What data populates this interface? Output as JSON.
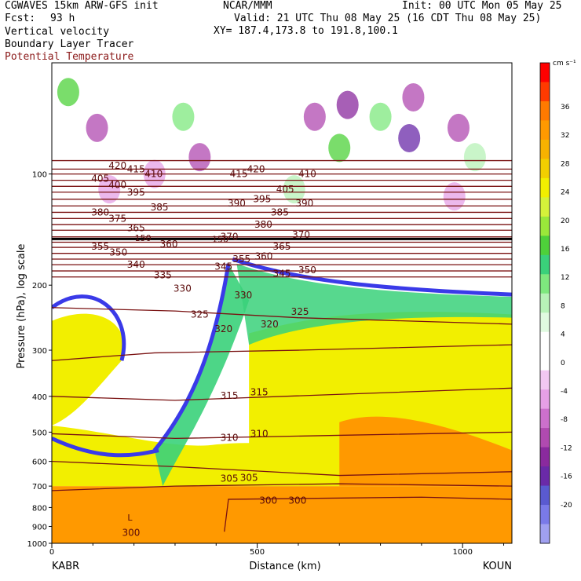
{
  "header": {
    "model": "CGWAVES 15km ARW-GFS init",
    "forecast_label": "Fcst:",
    "forecast_hours": "93 h",
    "org": "NCAR/MMM",
    "init": "Init: 00 UTC Mon 05 May 25",
    "valid": "Valid: 21 UTC Thu 08 May 25 (16 CDT Thu 08 May 25)",
    "xy": "XY= 187.4,173.8 to 191.8,100.1",
    "field1": "Vertical velocity",
    "field2": "Boundary Layer Tracer",
    "field3": "Potential Temperature",
    "field3_color": "#8b1a1a"
  },
  "chart_data": {
    "type": "heatmap",
    "xlabel": "Distance (km)",
    "ylabel": "Pressure (hPa), log scale",
    "x_ticks": [
      0,
      500,
      1000
    ],
    "y_ticks": [
      100,
      200,
      300,
      400,
      500,
      600,
      700,
      800,
      900,
      1000
    ],
    "xlim": [
      0,
      1120
    ],
    "ylim": [
      1000,
      50
    ],
    "x_start_label": "KABR",
    "x_end_label": "KOUN",
    "colorbar": {
      "unit": "cm s⁻¹",
      "ticks": [
        36,
        32,
        28,
        24,
        20,
        16,
        12,
        8,
        4,
        0,
        -4,
        -8,
        -12,
        -16,
        -20
      ],
      "colors": [
        "#ff0000",
        "#ff3a00",
        "#ff7a00",
        "#ff9900",
        "#f7b200",
        "#f2cf00",
        "#f2ef00",
        "#d5f23a",
        "#9ae83a",
        "#4ed13a",
        "#3ad17a",
        "#7ee87e",
        "#b7f2b7",
        "#e0fae0",
        "#ffffff",
        "#ffffff",
        "#f2c8f2",
        "#e6a0e6",
        "#cc70cc",
        "#b04ab0",
        "#8a2a9e",
        "#6a2aa8",
        "#5a5ad0",
        "#7a7ae8",
        "#a0a0f0"
      ]
    },
    "theta_labels": [
      {
        "v": "420",
        "x": 160,
        "p": 95
      },
      {
        "v": "415",
        "x": 205,
        "p": 97
      },
      {
        "v": "410",
        "x": 248,
        "p": 100
      },
      {
        "v": "405",
        "x": 118,
        "p": 103
      },
      {
        "v": "400",
        "x": 160,
        "p": 107
      },
      {
        "v": "395",
        "x": 205,
        "p": 112
      },
      {
        "v": "385",
        "x": 262,
        "p": 123
      },
      {
        "v": "380",
        "x": 118,
        "p": 127
      },
      {
        "v": "375",
        "x": 160,
        "p": 132
      },
      {
        "v": "365",
        "x": 205,
        "p": 140
      },
      {
        "v": "360",
        "x": 285,
        "p": 155
      },
      {
        "v": "355",
        "x": 118,
        "p": 157
      },
      {
        "v": "350",
        "x": 162,
        "p": 163
      },
      {
        "v": "340",
        "x": 205,
        "p": 176
      },
      {
        "v": "335",
        "x": 270,
        "p": 188
      },
      {
        "v": "330",
        "x": 318,
        "p": 204
      },
      {
        "v": "325",
        "x": 360,
        "p": 240
      },
      {
        "v": "320",
        "x": 418,
        "p": 263
      },
      {
        "v": "415",
        "x": 455,
        "p": 100
      },
      {
        "v": "420",
        "x": 497,
        "p": 97
      },
      {
        "v": "410",
        "x": 622,
        "p": 100
      },
      {
        "v": "405",
        "x": 568,
        "p": 110
      },
      {
        "v": "395",
        "x": 512,
        "p": 117
      },
      {
        "v": "390",
        "x": 450,
        "p": 120
      },
      {
        "v": "390",
        "x": 615,
        "p": 120
      },
      {
        "v": "385",
        "x": 555,
        "p": 127
      },
      {
        "v": "380",
        "x": 515,
        "p": 137
      },
      {
        "v": "370",
        "x": 432,
        "p": 148
      },
      {
        "v": "370",
        "x": 607,
        "p": 146
      },
      {
        "v": "365",
        "x": 560,
        "p": 157
      },
      {
        "v": "360",
        "x": 516,
        "p": 167
      },
      {
        "v": "355",
        "x": 462,
        "p": 170
      },
      {
        "v": "350",
        "x": 622,
        "p": 182
      },
      {
        "v": "345",
        "x": 418,
        "p": 178
      },
      {
        "v": "345",
        "x": 560,
        "p": 186
      },
      {
        "v": "330",
        "x": 466,
        "p": 213
      },
      {
        "v": "325",
        "x": 604,
        "p": 236
      },
      {
        "v": "320",
        "x": 530,
        "p": 255
      },
      {
        "v": "315",
        "x": 432,
        "p": 398
      },
      {
        "v": "315",
        "x": 505,
        "p": 390
      },
      {
        "v": "310",
        "x": 432,
        "p": 518
      },
      {
        "v": "310",
        "x": 505,
        "p": 505
      },
      {
        "v": "305",
        "x": 432,
        "p": 668
      },
      {
        "v": "305",
        "x": 480,
        "p": 665
      },
      {
        "v": "300",
        "x": 527,
        "p": 765
      },
      {
        "v": "300",
        "x": 598,
        "p": 765
      },
      {
        "v": "300",
        "x": 193,
        "p": 935
      }
    ],
    "markers": [
      {
        "v": "150",
        "x": 222,
        "p": 149
      },
      {
        "v": "150",
        "x": 410,
        "p": 150
      },
      {
        "v": "L",
        "x": 190,
        "p": 850
      }
    ]
  }
}
